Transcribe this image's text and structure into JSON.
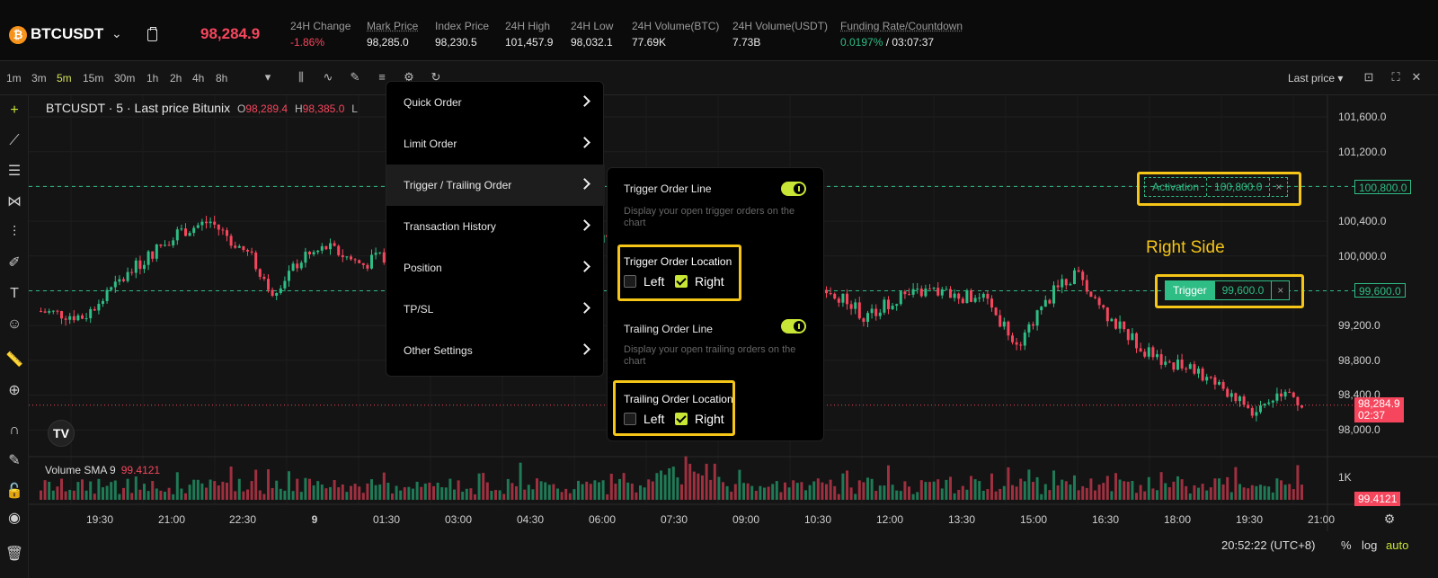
{
  "header": {
    "coin_icon": "bitcoin-icon",
    "symbol": "BTCUSDT",
    "last_price": "98,284.9",
    "stats": [
      {
        "label": "24H Change",
        "value": "-1.86%"
      },
      {
        "label": "Mark Price",
        "value": "98,285.0"
      },
      {
        "label": "Index Price",
        "value": "98,230.5"
      },
      {
        "label": "24H High",
        "value": "101,457.9"
      },
      {
        "label": "24H Low",
        "value": "98,032.1"
      },
      {
        "label": "24H Volume(BTC)",
        "value": "77.69K"
      },
      {
        "label": "24H Volume(USDT)",
        "value": "7.73B"
      },
      {
        "label": "Funding Rate/Countdown",
        "value": "0.0197%",
        "value2": "/ 03:07:37"
      }
    ]
  },
  "toolbar": {
    "timeframes": [
      "1m",
      "3m",
      "5m",
      "15m",
      "30m",
      "1h",
      "2h",
      "4h",
      "8h"
    ],
    "active_timeframe": "5m",
    "price_type": "Last price"
  },
  "chart": {
    "legend_title": "BTCUSDT · 5 · Last price Bitunix",
    "ohlc": {
      "o_label": "O",
      "o_value": "98,289.4",
      "h_label": "H",
      "h_value": "98,385.0",
      "l_label": "L"
    },
    "volume_label": "Volume SMA 9",
    "volume_value": "99.4121",
    "y_ticks": [
      "101,600.0",
      "101,200.0",
      "100,800.0",
      "100,400.0",
      "100,000.0",
      "99,600.0",
      "99,200.0",
      "98,800.0",
      "98,400.0",
      "98,000.0"
    ],
    "x_ticks": [
      "19:30",
      "21:00",
      "22:30",
      "9",
      "01:30",
      "03:00",
      "04:30",
      "06:00",
      "07:30",
      "09:00",
      "10:30",
      "12:00",
      "13:30",
      "15:00",
      "16:30",
      "18:00",
      "19:30",
      "21:00"
    ],
    "vol_tick": "1K",
    "price_tags": {
      "activation_line": "100,800.0",
      "trigger_line": "99,600.0",
      "last": "98,284.9",
      "countdown": "02:37",
      "volume": "99.4121"
    },
    "time_display": "20:52:22 (UTC+8)",
    "scale_percent": "%",
    "scale_log": "log",
    "scale_auto": "auto",
    "colors": {
      "up": "#2ebd85",
      "down": "#f6465d",
      "accent": "#c8e636",
      "highlight": "#f5c518"
    }
  },
  "annotation": {
    "right_side": "Right Side"
  },
  "order_chips": {
    "activation_label": "Activation",
    "activation_value": "100,800.0",
    "trigger_label": "Trigger",
    "trigger_value": "99,600.0",
    "close_glyph": "×"
  },
  "main_menu": {
    "items": [
      "Quick Order",
      "Limit Order",
      "Trigger / Trailing Order",
      "Transaction History",
      "Position",
      "TP/SL",
      "Other Settings"
    ],
    "hovered": "Trigger / Trailing Order"
  },
  "sub_menu": {
    "trigger_line_title": "Trigger Order Line",
    "trigger_line_desc": "Display your open trigger orders on the chart",
    "trigger_line_enabled": true,
    "trigger_location_title": "Trigger Order Location",
    "trailing_line_title": "Trailing Order Line",
    "trailing_line_desc": "Display your open trailing orders on the chart",
    "trailing_line_enabled": true,
    "trailing_location_title": "Trailing Order Location",
    "left_label": "Left",
    "right_label": "Right",
    "trigger_location": "Right",
    "trailing_location": "Right"
  }
}
